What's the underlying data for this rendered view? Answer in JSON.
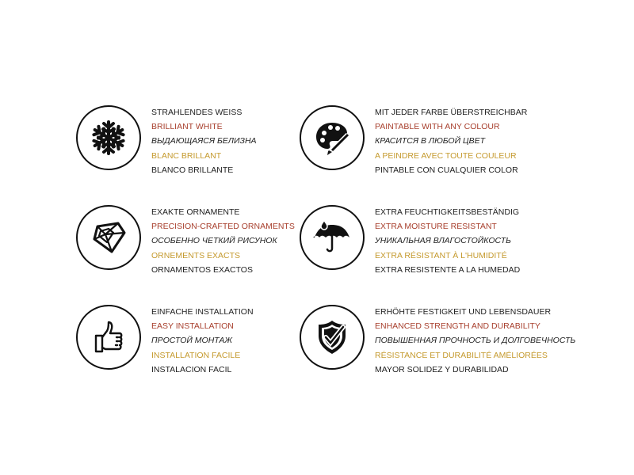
{
  "colors": {
    "text": "#222222",
    "english": "#a8402e",
    "french": "#c59a2e"
  },
  "features": [
    {
      "icon": "snowflake-icon",
      "lines": [
        "STRAHLENDES WEISS",
        "BRILLIANT WHITE",
        "ВЫДАЮЩАЯСЯ БЕЛИЗНА",
        "BLANC BRILLANT",
        "BLANCO BRILLANTE"
      ]
    },
    {
      "icon": "palette-icon",
      "lines": [
        "MIT JEDER FARBE ÜBERSTREICHBAR",
        "PAINTABLE WITH ANY COLOUR",
        "КРАСИТСЯ В ЛЮБОЙ ЦВЕТ",
        "A PEINDRE AVEC TOUTE COULEUR",
        "PINTABLE CON CUALQUIER COLOR"
      ]
    },
    {
      "icon": "diamond-icon",
      "lines": [
        "EXAKTE ORNAMENTE",
        "PRECISION-CRAFTED ORNAMENTS",
        "ОСОБЕННО ЧЕТКИЙ РИСУНОК",
        "ORNEMENTS EXACTS",
        "ORNAMENTOS EXACTOS"
      ]
    },
    {
      "icon": "umbrella-icon",
      "lines": [
        "EXTRA FEUCHTIGKEITSBESTÄNDIG",
        "EXTRA MOISTURE RESISTANT",
        "УНИКАЛЬНАЯ ВЛАГОСТОЙКОСТЬ",
        "EXTRA RÉSISTANT À L'HUMIDITÉ",
        "EXTRA RESISTENTE A LA HUMEDAD"
      ]
    },
    {
      "icon": "thumbs-up-icon",
      "lines": [
        "EINFACHE INSTALLATION",
        "EASY INSTALLATION",
        "ПРОСТОЙ МОНТАЖ",
        "INSTALLATION FACILE",
        "INSTALACION FACIL"
      ]
    },
    {
      "icon": "shield-check-icon",
      "lines": [
        "ERHÖHTE FESTIGKEIT UND LEBENSDAUER",
        "ENHANCED STRENGTH AND DURABILITY",
        "ПОВЫШЕННАЯ ПРОЧНОСТЬ И ДОЛГОВЕЧНОСТЬ",
        "RÉSISTANCE ET DURABILITÉ AMÉLIORÉES",
        "MAYOR SOLIDEZ Y DURABILIDAD"
      ]
    }
  ]
}
